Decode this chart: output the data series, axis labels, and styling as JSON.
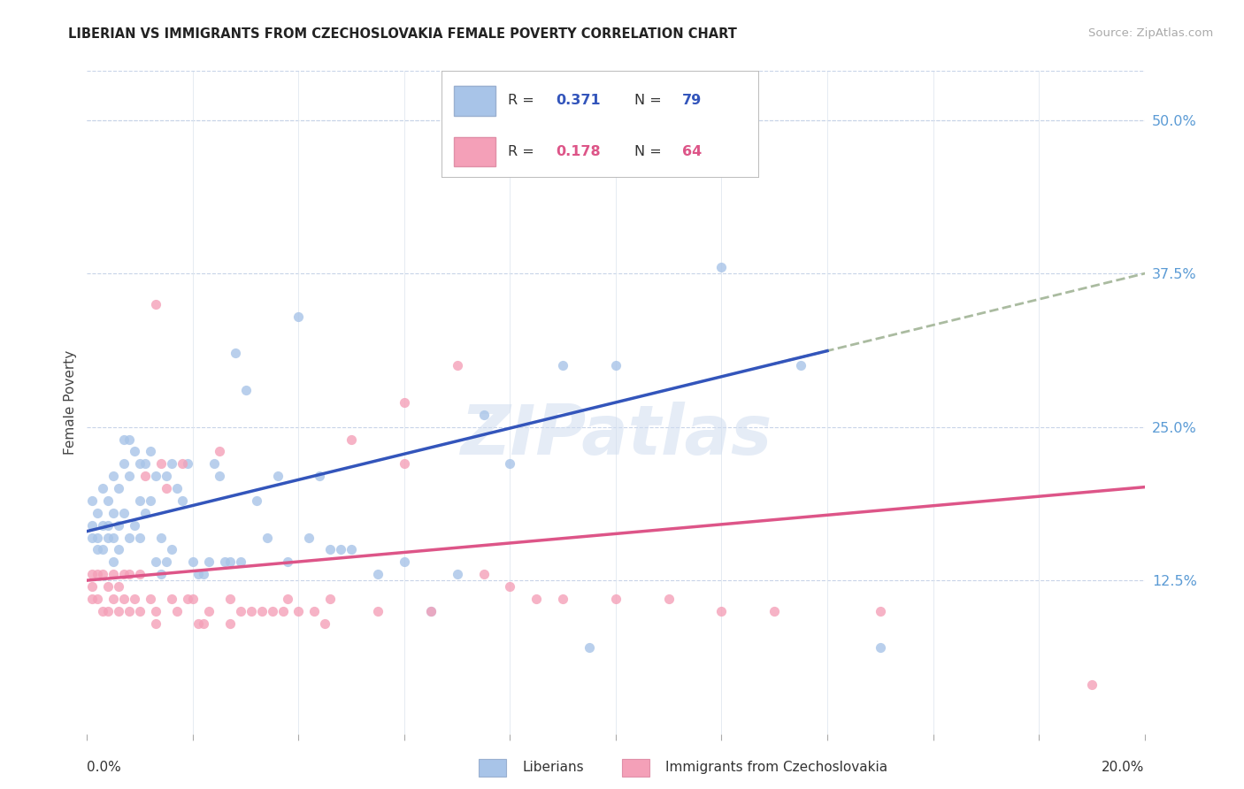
{
  "title": "LIBERIAN VS IMMIGRANTS FROM CZECHOSLOVAKIA FEMALE POVERTY CORRELATION CHART",
  "source": "Source: ZipAtlas.com",
  "ylabel": "Female Poverty",
  "yticks": [
    "12.5%",
    "25.0%",
    "37.5%",
    "50.0%"
  ],
  "ytick_vals": [
    0.125,
    0.25,
    0.375,
    0.5
  ],
  "xlim": [
    0.0,
    0.2
  ],
  "ylim": [
    0.0,
    0.54
  ],
  "legend1_R": "0.371",
  "legend1_N": "79",
  "legend2_R": "0.178",
  "legend2_N": "64",
  "color_blue": "#a8c4e8",
  "color_pink": "#f4a0b8",
  "line_blue": "#3355bb",
  "line_pink": "#dd5588",
  "line_dash_color": "#aabba0",
  "watermark": "ZIPatlas",
  "blue_intercept": 0.165,
  "blue_slope": 1.05,
  "pink_intercept": 0.125,
  "pink_slope": 0.38,
  "blue_points_x": [
    0.001,
    0.001,
    0.001,
    0.002,
    0.002,
    0.002,
    0.003,
    0.003,
    0.003,
    0.004,
    0.004,
    0.004,
    0.005,
    0.005,
    0.005,
    0.005,
    0.006,
    0.006,
    0.006,
    0.007,
    0.007,
    0.007,
    0.008,
    0.008,
    0.008,
    0.009,
    0.009,
    0.01,
    0.01,
    0.01,
    0.011,
    0.011,
    0.012,
    0.012,
    0.013,
    0.013,
    0.014,
    0.014,
    0.015,
    0.015,
    0.016,
    0.016,
    0.017,
    0.018,
    0.019,
    0.02,
    0.021,
    0.022,
    0.023,
    0.024,
    0.025,
    0.026,
    0.027,
    0.028,
    0.029,
    0.03,
    0.032,
    0.034,
    0.036,
    0.038,
    0.04,
    0.042,
    0.044,
    0.046,
    0.048,
    0.05,
    0.055,
    0.06,
    0.065,
    0.07,
    0.075,
    0.08,
    0.09,
    0.095,
    0.1,
    0.11,
    0.12,
    0.135,
    0.15
  ],
  "blue_points_y": [
    0.19,
    0.17,
    0.16,
    0.18,
    0.16,
    0.15,
    0.2,
    0.17,
    0.15,
    0.19,
    0.17,
    0.16,
    0.21,
    0.18,
    0.16,
    0.14,
    0.2,
    0.17,
    0.15,
    0.24,
    0.22,
    0.18,
    0.24,
    0.21,
    0.16,
    0.23,
    0.17,
    0.22,
    0.19,
    0.16,
    0.22,
    0.18,
    0.23,
    0.19,
    0.14,
    0.21,
    0.13,
    0.16,
    0.21,
    0.14,
    0.22,
    0.15,
    0.2,
    0.19,
    0.22,
    0.14,
    0.13,
    0.13,
    0.14,
    0.22,
    0.21,
    0.14,
    0.14,
    0.31,
    0.14,
    0.28,
    0.19,
    0.16,
    0.21,
    0.14,
    0.34,
    0.16,
    0.21,
    0.15,
    0.15,
    0.15,
    0.13,
    0.14,
    0.1,
    0.13,
    0.26,
    0.22,
    0.3,
    0.07,
    0.3,
    0.47,
    0.38,
    0.3,
    0.07
  ],
  "pink_points_x": [
    0.001,
    0.001,
    0.001,
    0.002,
    0.002,
    0.003,
    0.003,
    0.004,
    0.004,
    0.005,
    0.005,
    0.006,
    0.006,
    0.007,
    0.007,
    0.008,
    0.008,
    0.009,
    0.01,
    0.01,
    0.011,
    0.012,
    0.013,
    0.014,
    0.015,
    0.016,
    0.017,
    0.018,
    0.019,
    0.02,
    0.021,
    0.022,
    0.023,
    0.025,
    0.027,
    0.029,
    0.031,
    0.033,
    0.035,
    0.037,
    0.04,
    0.043,
    0.046,
    0.05,
    0.055,
    0.06,
    0.065,
    0.07,
    0.075,
    0.08,
    0.09,
    0.1,
    0.11,
    0.12,
    0.13,
    0.013,
    0.038,
    0.06,
    0.085,
    0.15,
    0.013,
    0.19,
    0.027,
    0.045
  ],
  "pink_points_y": [
    0.13,
    0.12,
    0.11,
    0.13,
    0.11,
    0.13,
    0.1,
    0.12,
    0.1,
    0.13,
    0.11,
    0.12,
    0.1,
    0.13,
    0.11,
    0.13,
    0.1,
    0.11,
    0.13,
    0.1,
    0.21,
    0.11,
    0.1,
    0.22,
    0.2,
    0.11,
    0.1,
    0.22,
    0.11,
    0.11,
    0.09,
    0.09,
    0.1,
    0.23,
    0.11,
    0.1,
    0.1,
    0.1,
    0.1,
    0.1,
    0.1,
    0.1,
    0.11,
    0.24,
    0.1,
    0.27,
    0.1,
    0.3,
    0.13,
    0.12,
    0.11,
    0.11,
    0.11,
    0.1,
    0.1,
    0.35,
    0.11,
    0.22,
    0.11,
    0.1,
    0.09,
    0.04,
    0.09,
    0.09
  ]
}
